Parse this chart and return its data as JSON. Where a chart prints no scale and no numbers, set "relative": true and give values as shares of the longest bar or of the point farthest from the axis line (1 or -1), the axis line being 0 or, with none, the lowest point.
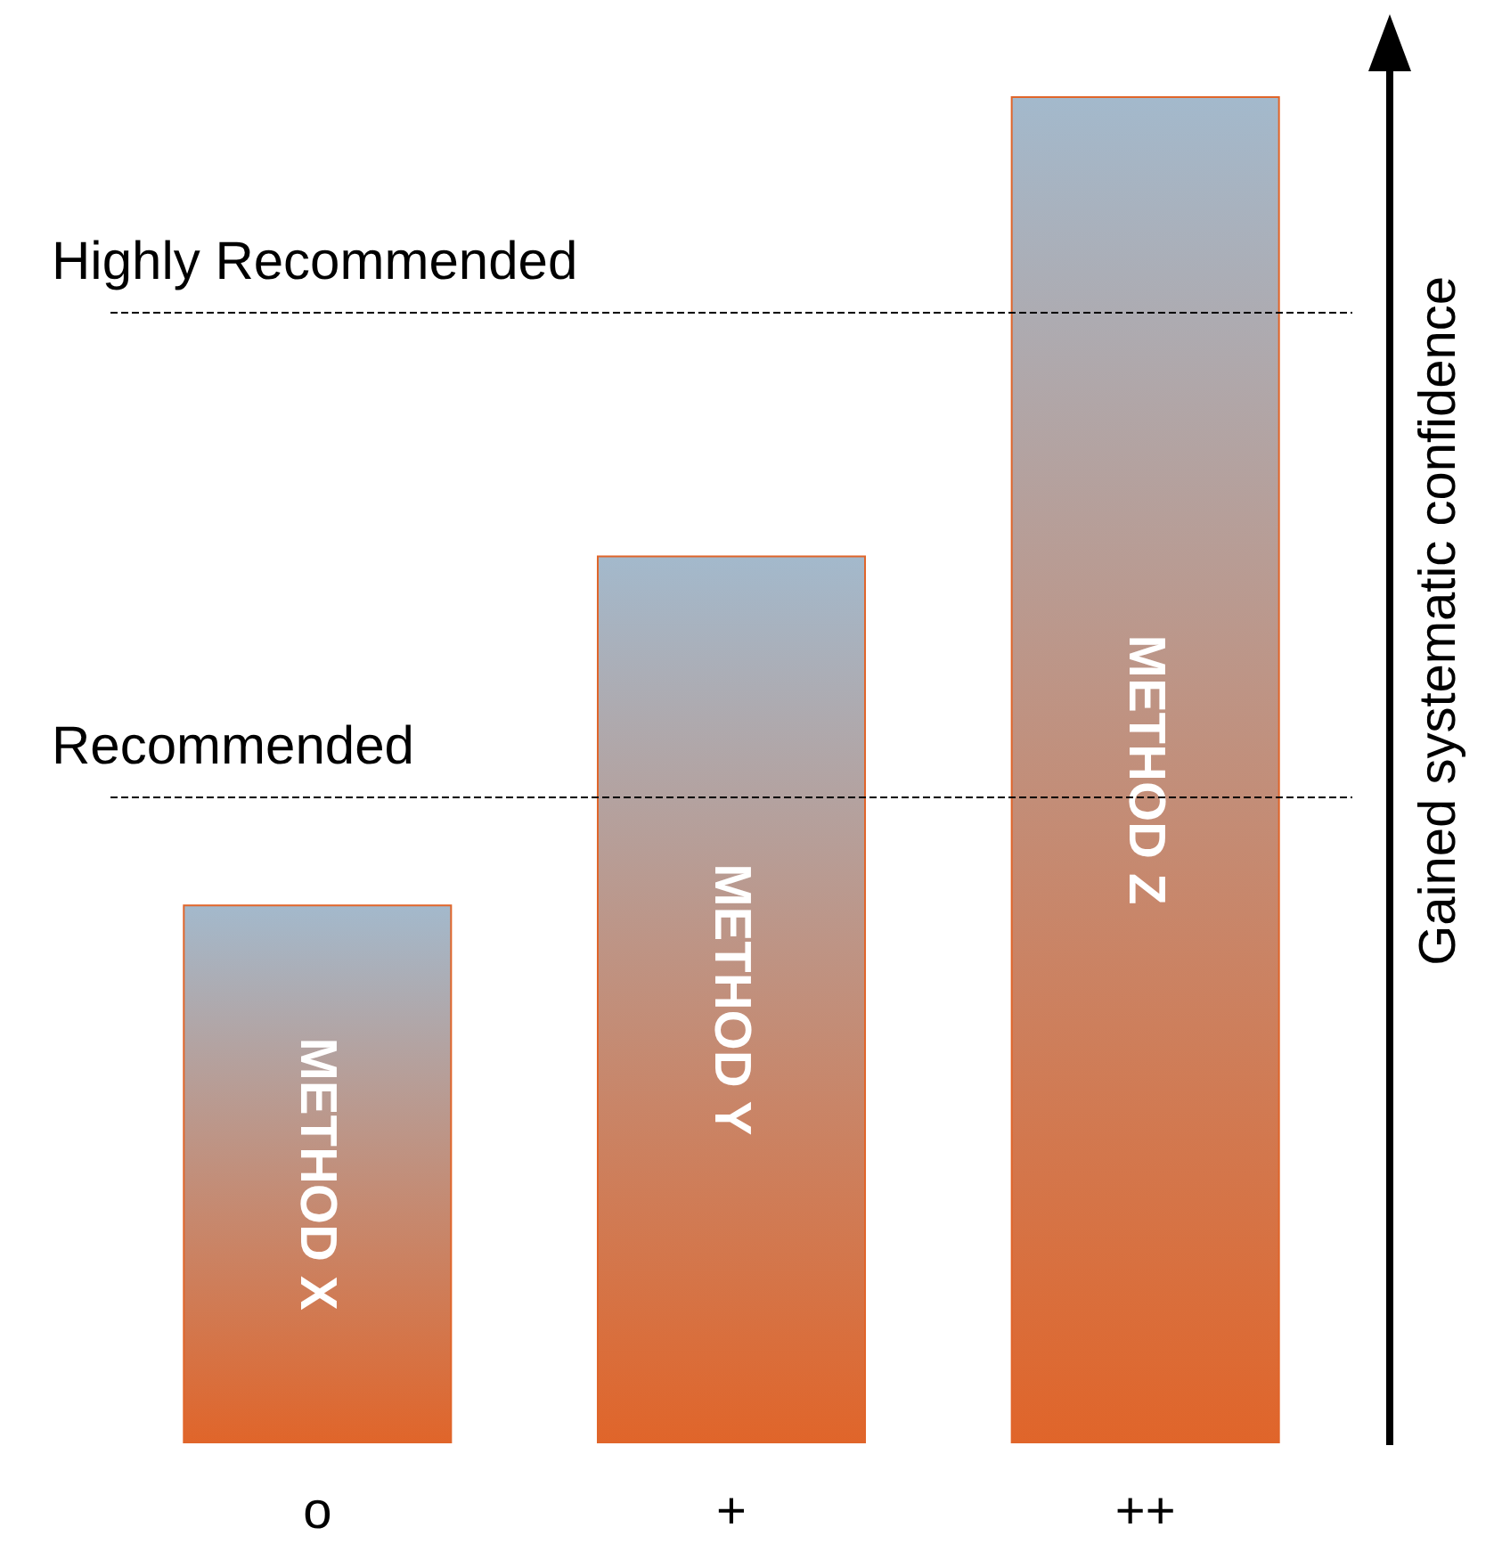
{
  "chart_data": {
    "type": "bar",
    "relative": true,
    "ylabel": "Gained systematic confidence",
    "categories": [
      "o",
      "+",
      "++"
    ],
    "series": [
      {
        "color": "#e0652a",
        "values": [
          0.4,
          0.659,
          1
        ]
      }
    ],
    "ref_lines": [
      {
        "axis": "y",
        "value": 0.479,
        "label": "Recommended",
        "line_style": "dashed",
        "color": "#000000"
      },
      {
        "axis": "y",
        "value": 0.84,
        "label": "Highly Recommended",
        "line_style": "dashed",
        "color": "#000000"
      }
    ],
    "annotations": [
      "METHOD X",
      "METHOD Y",
      "METHOD Z"
    ],
    "grid": false
  }
}
